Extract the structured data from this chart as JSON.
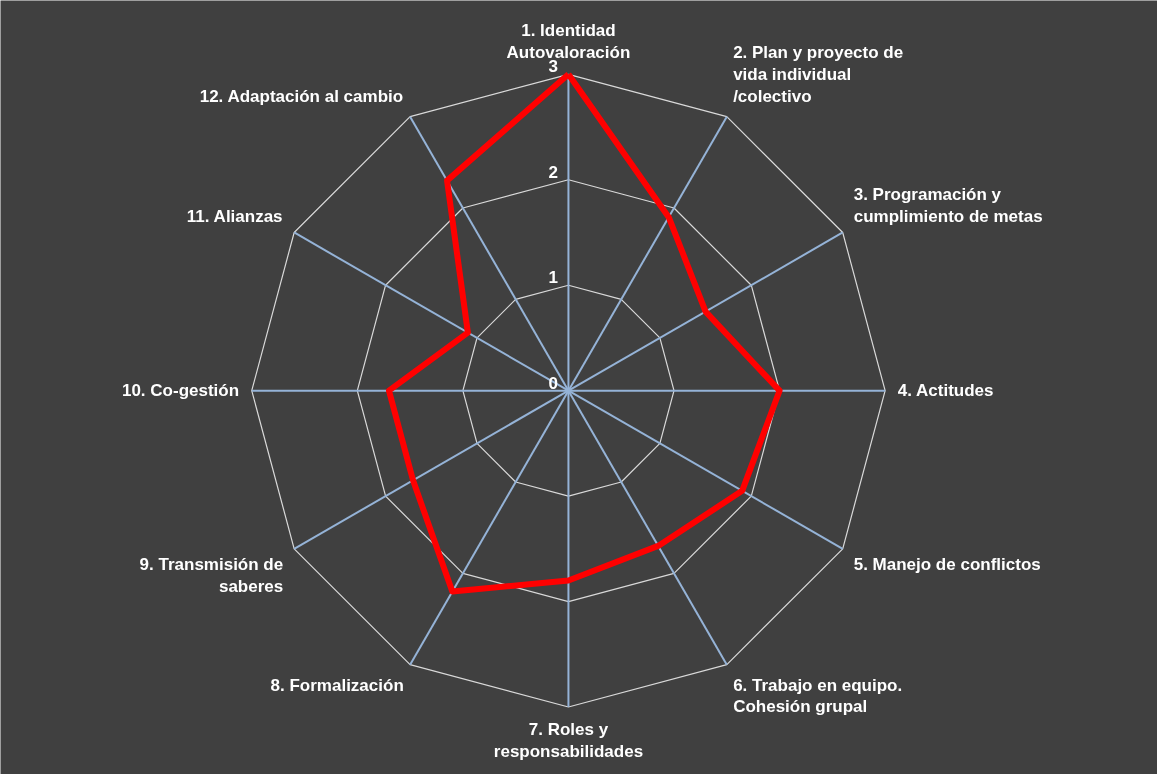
{
  "chart_data": {
    "type": "radar",
    "categories": [
      "1. Identidad Autovaloración",
      "2. Plan y proyecto de vida individual /colectivo",
      "3. Programación y cumplimiento de metas",
      "4. Actitudes",
      "5. Manejo de conflictos",
      "6. Trabajo en equipo. Cohesión grupal",
      "7. Roles y responsabilidades",
      "8. Formalización",
      "9. Transmisión de saberes",
      "10. Co-gestión",
      "11. Alianzas",
      "12. Adaptación al cambio"
    ],
    "series": [
      {
        "color": "#ff0000",
        "values": [
          3,
          1.9,
          1.5,
          2,
          1.9,
          1.7,
          1.8,
          2.2,
          1.7,
          1.7,
          1.1,
          2.3
        ]
      }
    ],
    "ylim": [
      0,
      3
    ],
    "yticks": [
      0,
      1,
      2,
      3
    ],
    "grid": true
  }
}
